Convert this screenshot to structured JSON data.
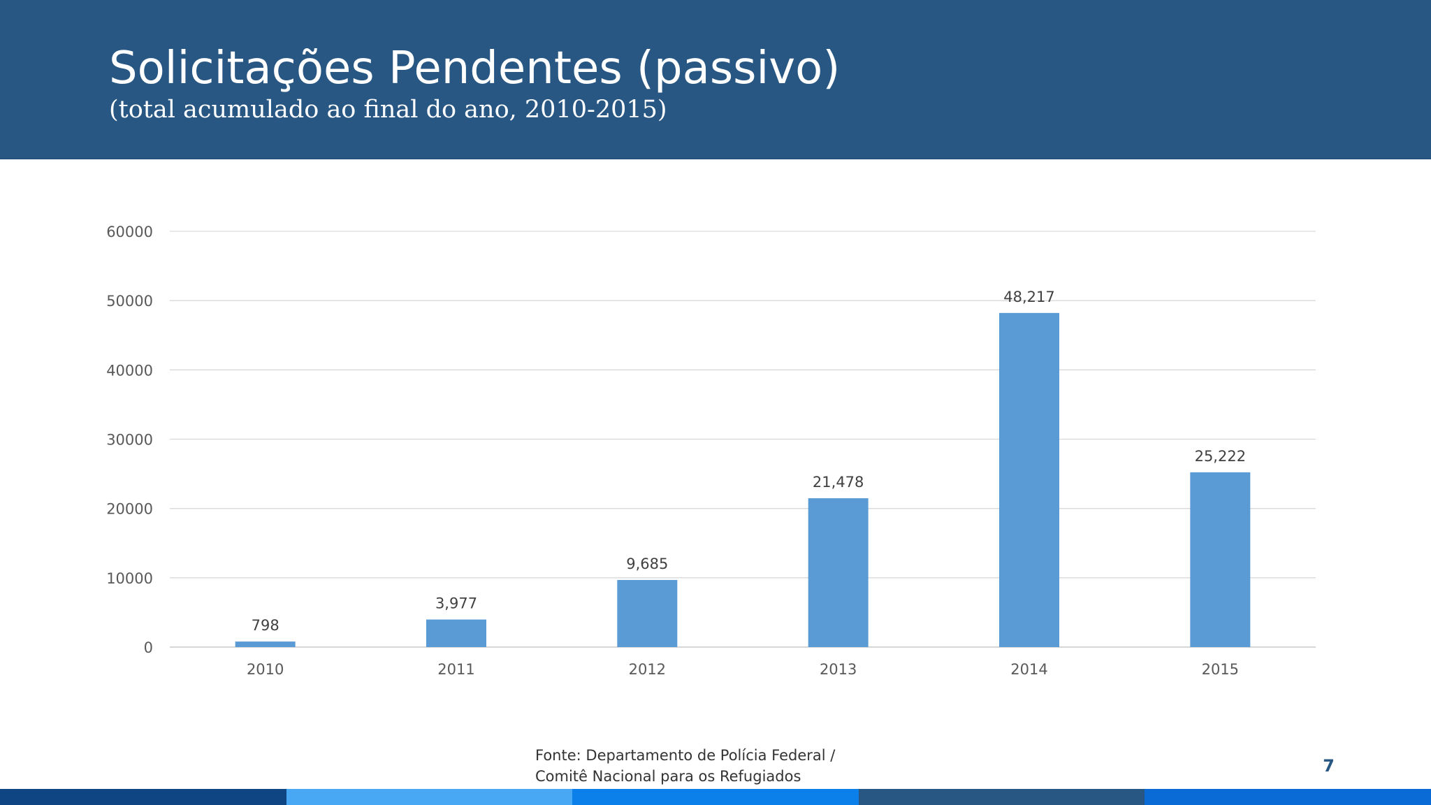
{
  "slide": {
    "title": "Solicitações Pendentes (passivo)",
    "subtitle": "(total acumulado ao final do ano, 2010-2015)",
    "source_line1": "Fonte: Departamento de Polícia Federal /",
    "source_line2": "Comitê Nacional para os Refugiados",
    "page_number": "7",
    "header_color": "#285783",
    "footer_colors": [
      "#0f4583",
      "#48a8f4",
      "#0b80ea",
      "#285783",
      "#0a6ad6"
    ]
  },
  "chart_data": {
    "type": "bar",
    "title": "",
    "xlabel": "",
    "ylabel": "",
    "categories": [
      "2010",
      "2011",
      "2012",
      "2013",
      "2014",
      "2015"
    ],
    "values": [
      798,
      3977,
      9685,
      21478,
      48217,
      25222
    ],
    "data_labels": [
      "798",
      "3,977",
      "9,685",
      "21,478",
      "48,217",
      "25,222"
    ],
    "ylim": [
      0,
      60000
    ],
    "yticks": [
      0,
      10000,
      20000,
      30000,
      40000,
      50000,
      60000
    ],
    "ytick_labels": [
      "0",
      "10000",
      "20000",
      "30000",
      "40000",
      "50000",
      "60000"
    ],
    "grid": true,
    "legend": "none",
    "bar_color": "#5b9bd5",
    "grid_color": "#d9d9d9"
  }
}
